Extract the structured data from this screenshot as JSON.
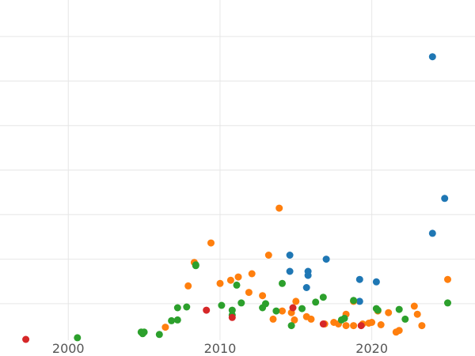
{
  "chart_data": {
    "type": "scatter",
    "title": "",
    "xlabel": "",
    "ylabel": "",
    "xlim": [
      1995.5,
      2026.8
    ],
    "ylim": [
      0,
      42
    ],
    "x_ticks": [
      2000,
      2010,
      2020
    ],
    "x_tick_labels": [
      "2000",
      "2010",
      "2020"
    ],
    "y_grid": [
      4.5,
      10,
      15.5,
      21,
      26.5,
      32,
      37.5
    ],
    "grid": true,
    "legend": "none",
    "series": [
      {
        "color": "#1f77b4",
        "points": [
          [
            2024.0,
            35.0
          ],
          [
            2024.8,
            17.5
          ],
          [
            2024.0,
            13.2
          ],
          [
            2014.6,
            10.5
          ],
          [
            2017.0,
            10.0
          ],
          [
            2014.6,
            8.5
          ],
          [
            2015.8,
            8.5
          ],
          [
            2015.8,
            8.0
          ],
          [
            2019.2,
            7.5
          ],
          [
            2020.3,
            7.2
          ],
          [
            2015.7,
            6.5
          ],
          [
            2019.2,
            4.8
          ]
        ]
      },
      {
        "color": "#ff7f0e",
        "points": [
          [
            2013.9,
            16.3
          ],
          [
            2009.4,
            12.0
          ],
          [
            2013.2,
            10.5
          ],
          [
            2008.3,
            9.6
          ],
          [
            2012.1,
            8.2
          ],
          [
            2011.2,
            7.8
          ],
          [
            2010.7,
            7.4
          ],
          [
            2010.0,
            7.0
          ],
          [
            2007.9,
            6.7
          ],
          [
            2011.9,
            5.9
          ],
          [
            2012.8,
            5.5
          ],
          [
            2015.0,
            4.8
          ],
          [
            2014.1,
            3.6
          ],
          [
            2014.7,
            3.4
          ],
          [
            2013.5,
            2.6
          ],
          [
            2014.9,
            2.5
          ],
          [
            2015.7,
            2.9
          ],
          [
            2016.0,
            2.6
          ],
          [
            2016.9,
            2.0
          ],
          [
            2017.5,
            2.2
          ],
          [
            2017.8,
            2.0
          ],
          [
            2018.3,
            3.2
          ],
          [
            2018.3,
            1.8
          ],
          [
            2018.8,
            1.8
          ],
          [
            2019.4,
            2.0
          ],
          [
            2019.8,
            2.1
          ],
          [
            2020.0,
            2.2
          ],
          [
            2020.6,
            1.9
          ],
          [
            2021.1,
            3.4
          ],
          [
            2021.6,
            1.0
          ],
          [
            2021.8,
            1.2
          ],
          [
            2022.8,
            4.2
          ],
          [
            2023.0,
            3.2
          ],
          [
            2023.3,
            1.8
          ],
          [
            2025.0,
            7.5
          ],
          [
            2020.4,
            3.6
          ],
          [
            2006.4,
            1.6
          ],
          [
            2018.8,
            4.8
          ]
        ]
      },
      {
        "color": "#2ca02c",
        "points": [
          [
            2000.6,
            0.3
          ],
          [
            2004.9,
            0.8
          ],
          [
            2004.8,
            1.0
          ],
          [
            2005.0,
            1.0
          ],
          [
            2006.0,
            0.7
          ],
          [
            2006.8,
            2.4
          ],
          [
            2007.2,
            2.5
          ],
          [
            2007.2,
            4.0
          ],
          [
            2007.8,
            4.1
          ],
          [
            2008.4,
            9.3
          ],
          [
            2008.4,
            9.2
          ],
          [
            2010.1,
            4.3
          ],
          [
            2010.8,
            3.7
          ],
          [
            2010.8,
            3.1
          ],
          [
            2011.1,
            6.8
          ],
          [
            2011.4,
            4.6
          ],
          [
            2012.8,
            4.0
          ],
          [
            2013.0,
            4.5
          ],
          [
            2013.7,
            3.6
          ],
          [
            2014.1,
            7.0
          ],
          [
            2014.7,
            1.8
          ],
          [
            2015.4,
            3.9
          ],
          [
            2016.3,
            4.7
          ],
          [
            2016.8,
            5.3
          ],
          [
            2018.0,
            2.5
          ],
          [
            2018.2,
            2.7
          ],
          [
            2018.8,
            4.9
          ],
          [
            2020.3,
            3.9
          ],
          [
            2020.4,
            3.7
          ],
          [
            2021.8,
            3.8
          ],
          [
            2022.2,
            2.6
          ],
          [
            2025.0,
            4.6
          ]
        ]
      },
      {
        "color": "#d62728",
        "points": [
          [
            1997.2,
            0.1
          ],
          [
            2009.1,
            3.7
          ],
          [
            2010.8,
            2.8
          ],
          [
            2014.8,
            4.0
          ],
          [
            2016.8,
            2.0
          ],
          [
            2019.3,
            1.8
          ]
        ]
      }
    ]
  }
}
